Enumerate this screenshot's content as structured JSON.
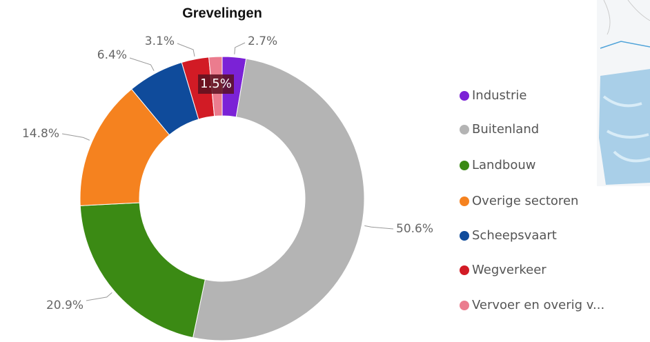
{
  "chart_data": {
    "type": "donut",
    "title": "Grevelingen",
    "categories": [
      "Industrie",
      "Buitenland",
      "Landbouw",
      "Overige sectoren",
      "Scheepsvaart",
      "Wegverkeer",
      "Vervoer en overig v..."
    ],
    "values": [
      2.7,
      50.6,
      20.9,
      14.8,
      6.4,
      3.1,
      1.5
    ],
    "value_labels": [
      "2.7%",
      "50.6%",
      "20.9%",
      "14.8%",
      "6.4%",
      "3.1%",
      "1.5%"
    ],
    "colors": [
      "#7b22d6",
      "#b4b4b4",
      "#3b8a14",
      "#f5821f",
      "#0f4b9b",
      "#d21b25",
      "#eb7c8e"
    ],
    "legend": "right"
  }
}
